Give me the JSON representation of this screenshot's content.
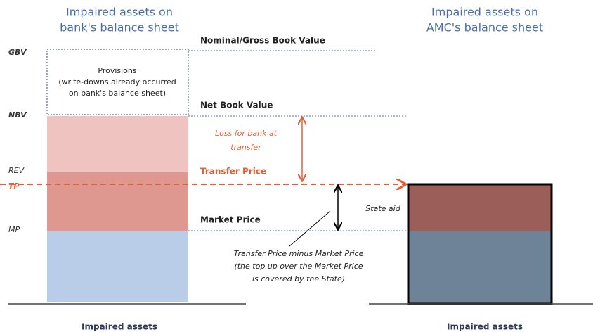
{
  "left_panel": {
    "title": [
      "Impaired assets on",
      "bank's balance sheet"
    ],
    "footer": "Impaired assets",
    "provisions": [
      "Provisions",
      "(write-downs already occurred",
      "on bank's balance sheet)"
    ]
  },
  "right_panel": {
    "title": [
      "Impaired assets on",
      "AMC's balance sheet"
    ],
    "footer": "Impaired assets"
  },
  "axis_labels": {
    "gbv": "GBV",
    "nbv": "NBV",
    "rev": "REV",
    "tp": "TP",
    "mp": "MP"
  },
  "levels": {
    "gross": "Nominal/Gross Book Value",
    "net": "Net Book Value",
    "transfer": "Transfer Price",
    "market": "Market Price"
  },
  "annotations": {
    "loss": [
      "Loss for bank at",
      "transfer"
    ],
    "state_aid": "State aid",
    "top_up": [
      "Transfer Price minus Market Price",
      "(the top up over the Market Price",
      "is covered by the State)"
    ]
  }
}
